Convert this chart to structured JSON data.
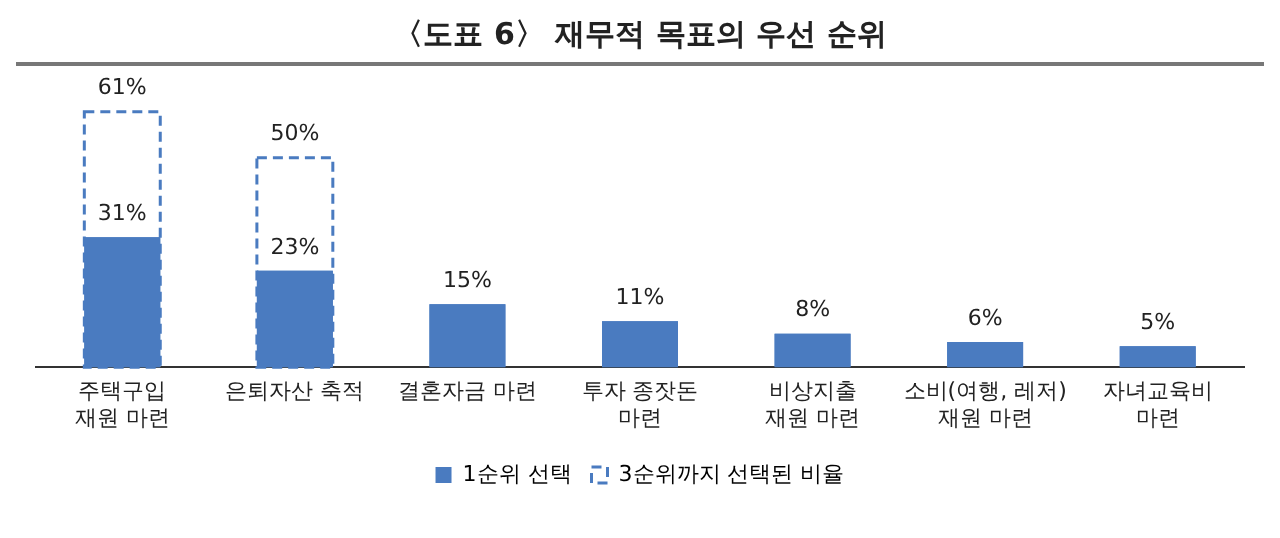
{
  "chart_data": {
    "type": "bar",
    "title": "〈도표 6〉 재무적 목표의 우선 순위",
    "categories": [
      "주택구입\n재원 마련",
      "은퇴자산 축적",
      "결혼자금 마련",
      "투자 종잣돈\n마련",
      "비상지출\n재원 마련",
      "소비(여행, 레저)\n재원 마련",
      "자녀교육비\n마련"
    ],
    "series": [
      {
        "name": "1순위 선택",
        "color": "#4a7bc0",
        "values": [
          31,
          23,
          15,
          11,
          8,
          6,
          5
        ],
        "value_labels": [
          "31%",
          "23%",
          "15%",
          "11%",
          "8%",
          "6%",
          "5%"
        ]
      },
      {
        "name": "3순위까지 선택된 비율",
        "color": "#4a7bc0",
        "line_style": "dashed",
        "values": [
          61,
          50,
          null,
          null,
          null,
          null,
          null
        ],
        "value_labels": [
          "61%",
          "50%",
          null,
          null,
          null,
          null,
          null
        ]
      }
    ],
    "legend": "bottom",
    "grid": false,
    "tick_labels": "x"
  }
}
